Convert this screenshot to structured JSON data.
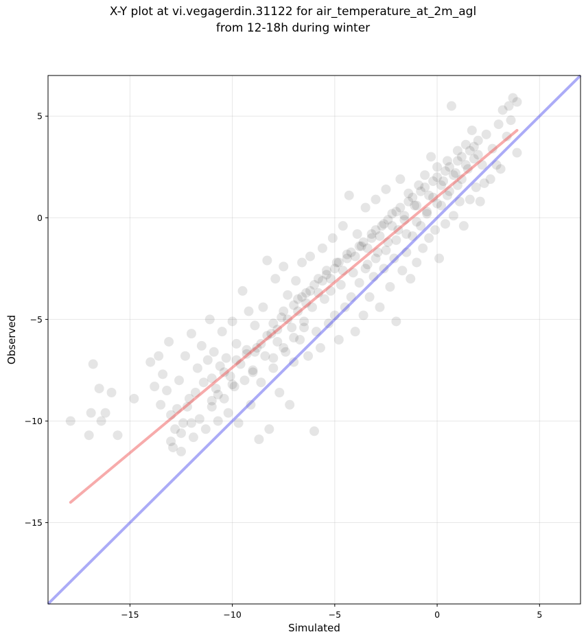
{
  "chart_data": {
    "type": "scatter",
    "title_line1": "X-Y plot at vi.vegagerdin.31122 for air_temperature_at_2m_agl",
    "title_line2": "from 12-18h during winter",
    "xlabel": "Simulated",
    "ylabel": "Observed",
    "xlim": [
      -19,
      7
    ],
    "ylim": [
      -19,
      7
    ],
    "x_ticks": [
      -15,
      -10,
      -5,
      0,
      5
    ],
    "y_ticks": [
      -15,
      -10,
      -5,
      0,
      5
    ],
    "x_tick_labels": [
      "−15",
      "−10",
      "−5",
      "0",
      "5"
    ],
    "y_tick_labels": [
      "−15",
      "−10",
      "−5",
      "0",
      "5"
    ],
    "grid": true,
    "point_color": "#000000",
    "point_alpha": 0.1,
    "fit_line": {
      "color": "#ee4444",
      "x": [
        -17.9,
        3.9
      ],
      "y": [
        -14.0,
        4.3
      ]
    },
    "identity_line": {
      "color": "#4444ee",
      "x": [
        -19,
        7
      ],
      "y": [
        -19,
        7
      ]
    },
    "points": [
      [
        -17.9,
        -10.0
      ],
      [
        -17.0,
        -10.7
      ],
      [
        -16.8,
        -7.2
      ],
      [
        -16.5,
        -8.4
      ],
      [
        -16.4,
        -10.0
      ],
      [
        -16.2,
        -9.6
      ],
      [
        -16.9,
        -9.6
      ],
      [
        -15.9,
        -8.6
      ],
      [
        -15.6,
        -10.7
      ],
      [
        -14.8,
        -8.9
      ],
      [
        -14.0,
        -7.1
      ],
      [
        -13.8,
        -8.3
      ],
      [
        -13.6,
        -6.8
      ],
      [
        -13.5,
        -9.2
      ],
      [
        -13.4,
        -7.7
      ],
      [
        -13.2,
        -8.5
      ],
      [
        -13.1,
        -6.1
      ],
      [
        -13.0,
        -9.7
      ],
      [
        -12.9,
        -11.3
      ],
      [
        -12.8,
        -10.4
      ],
      [
        -12.6,
        -8.0
      ],
      [
        -12.5,
        -11.5
      ],
      [
        -12.4,
        -10.1
      ],
      [
        -12.3,
        -6.8
      ],
      [
        -12.2,
        -9.3
      ],
      [
        -12.0,
        -5.7
      ],
      [
        -11.9,
        -10.8
      ],
      [
        -11.8,
        -8.6
      ],
      [
        -11.7,
        -7.4
      ],
      [
        -11.6,
        -9.9
      ],
      [
        -11.5,
        -6.3
      ],
      [
        -11.4,
        -8.1
      ],
      [
        -11.3,
        -10.4
      ],
      [
        -11.2,
        -7.0
      ],
      [
        -11.1,
        -5.0
      ],
      [
        -11.0,
        -9.0
      ],
      [
        -10.9,
        -6.6
      ],
      [
        -10.8,
        -8.4
      ],
      [
        -10.7,
        -10.0
      ],
      [
        -10.6,
        -7.3
      ],
      [
        -10.5,
        -5.6
      ],
      [
        -10.4,
        -8.9
      ],
      [
        -10.3,
        -6.9
      ],
      [
        -10.2,
        -9.6
      ],
      [
        -10.1,
        -7.8
      ],
      [
        -10.0,
        -5.1
      ],
      [
        -9.9,
        -8.3
      ],
      [
        -9.8,
        -6.2
      ],
      [
        -9.7,
        -10.1
      ],
      [
        -9.6,
        -7.2
      ],
      [
        -9.5,
        -3.6
      ],
      [
        -9.4,
        -8.0
      ],
      [
        -9.3,
        -6.7
      ],
      [
        -9.2,
        -4.6
      ],
      [
        -9.1,
        -9.2
      ],
      [
        -9.0,
        -7.5
      ],
      [
        -8.9,
        -5.3
      ],
      [
        -8.8,
        -6.4
      ],
      [
        -8.7,
        -10.9
      ],
      [
        -8.6,
        -8.1
      ],
      [
        -8.5,
        -4.4
      ],
      [
        -8.4,
        -6.8
      ],
      [
        -8.3,
        -2.1
      ],
      [
        -8.2,
        -10.4
      ],
      [
        -8.1,
        -5.7
      ],
      [
        -8.0,
        -7.4
      ],
      [
        -7.9,
        -3.0
      ],
      [
        -7.8,
        -6.1
      ],
      [
        -7.7,
        -8.6
      ],
      [
        -7.6,
        -4.9
      ],
      [
        -7.5,
        -2.4
      ],
      [
        -7.4,
        -6.6
      ],
      [
        -7.3,
        -3.8
      ],
      [
        -7.2,
        -9.2
      ],
      [
        -7.1,
        -5.4
      ],
      [
        -7.0,
        -7.1
      ],
      [
        -6.9,
        -3.1
      ],
      [
        -6.8,
        -4.6
      ],
      [
        -6.7,
        -6.0
      ],
      [
        -6.6,
        -2.2
      ],
      [
        -6.5,
        -5.1
      ],
      [
        -6.4,
        -3.7
      ],
      [
        -6.3,
        -6.8
      ],
      [
        -6.2,
        -1.9
      ],
      [
        -6.1,
        -4.4
      ],
      [
        -6.0,
        -10.5
      ],
      [
        -5.9,
        -5.6
      ],
      [
        -5.8,
        -3.0
      ],
      [
        -5.7,
        -6.4
      ],
      [
        -5.6,
        -1.5
      ],
      [
        -5.5,
        -4.0
      ],
      [
        -5.4,
        -2.6
      ],
      [
        -5.3,
        -5.2
      ],
      [
        -5.2,
        -3.6
      ],
      [
        -5.1,
        -1.0
      ],
      [
        -5.0,
        -4.8
      ],
      [
        -4.9,
        -2.2
      ],
      [
        -4.8,
        -6.0
      ],
      [
        -4.7,
        -3.3
      ],
      [
        -4.6,
        -0.4
      ],
      [
        -4.5,
        -4.4
      ],
      [
        -4.4,
        -1.8
      ],
      [
        -4.3,
        1.1
      ],
      [
        -4.2,
        -3.9
      ],
      [
        -4.1,
        -2.7
      ],
      [
        -4.0,
        -5.6
      ],
      [
        -3.9,
        -0.8
      ],
      [
        -3.8,
        -3.2
      ],
      [
        -3.7,
        -1.4
      ],
      [
        -3.6,
        -4.8
      ],
      [
        -3.5,
        0.5
      ],
      [
        -3.4,
        -2.3
      ],
      [
        -3.3,
        -3.9
      ],
      [
        -3.2,
        -1.0
      ],
      [
        -3.1,
        -2.9
      ],
      [
        -3.0,
        0.9
      ],
      [
        -2.9,
        -1.7
      ],
      [
        -2.8,
        -4.4
      ],
      [
        -2.7,
        -0.4
      ],
      [
        -2.6,
        -2.5
      ],
      [
        -2.5,
        1.4
      ],
      [
        -2.4,
        -1.2
      ],
      [
        -2.3,
        -3.4
      ],
      [
        -2.2,
        0.2
      ],
      [
        -2.1,
        -2.0
      ],
      [
        -2.0,
        -5.1
      ],
      [
        -1.9,
        -0.6
      ],
      [
        -1.8,
        1.9
      ],
      [
        -1.7,
        -2.6
      ],
      [
        -1.6,
        -0.1
      ],
      [
        -1.5,
        -1.7
      ],
      [
        -1.4,
        1.2
      ],
      [
        -1.3,
        -3.0
      ],
      [
        -1.2,
        -0.9
      ],
      [
        -1.1,
        0.6
      ],
      [
        -1.0,
        -2.2
      ],
      [
        -0.9,
        1.6
      ],
      [
        -0.8,
        -0.4
      ],
      [
        -0.7,
        -1.5
      ],
      [
        -0.6,
        2.1
      ],
      [
        -0.5,
        0.3
      ],
      [
        -0.4,
        -1.0
      ],
      [
        -0.3,
        3.0
      ],
      [
        -0.2,
        1.0
      ],
      [
        -0.1,
        -0.6
      ],
      [
        0.0,
        2.5
      ],
      [
        0.1,
        -2.0
      ],
      [
        0.2,
        0.6
      ],
      [
        0.3,
        1.8
      ],
      [
        0.4,
        -0.3
      ],
      [
        0.5,
        2.8
      ],
      [
        0.6,
        1.3
      ],
      [
        0.7,
        5.5
      ],
      [
        0.8,
        0.1
      ],
      [
        0.9,
        2.2
      ],
      [
        1.0,
        3.3
      ],
      [
        1.1,
        0.8
      ],
      [
        1.2,
        1.9
      ],
      [
        1.3,
        -0.4
      ],
      [
        1.4,
        3.6
      ],
      [
        1.5,
        2.4
      ],
      [
        1.6,
        0.9
      ],
      [
        1.7,
        4.3
      ],
      [
        1.8,
        2.9
      ],
      [
        1.9,
        1.5
      ],
      [
        2.0,
        3.8
      ],
      [
        2.1,
        0.8
      ],
      [
        2.2,
        2.6
      ],
      [
        2.3,
        1.7
      ],
      [
        2.4,
        4.1
      ],
      [
        2.6,
        1.9
      ],
      [
        2.7,
        3.4
      ],
      [
        2.9,
        2.6
      ],
      [
        3.0,
        4.6
      ],
      [
        3.1,
        2.4
      ],
      [
        3.2,
        5.3
      ],
      [
        3.4,
        4.0
      ],
      [
        3.5,
        5.5
      ],
      [
        3.6,
        4.8
      ],
      [
        3.7,
        5.9
      ],
      [
        3.9,
        5.7
      ],
      [
        3.9,
        3.2
      ],
      [
        -12.7,
        -9.4
      ],
      [
        -12.1,
        -8.9
      ],
      [
        -11.0,
        -7.9
      ],
      [
        -10.7,
        -8.7
      ],
      [
        -10.4,
        -7.6
      ],
      [
        -9.8,
        -7.0
      ],
      [
        -9.3,
        -6.5
      ],
      [
        -8.9,
        -6.6
      ],
      [
        -8.6,
        -6.2
      ],
      [
        -8.3,
        -5.8
      ],
      [
        -8.0,
        -5.2
      ],
      [
        -7.8,
        -5.5
      ],
      [
        -7.5,
        -4.6
      ],
      [
        -7.3,
        -5.0
      ],
      [
        -7.0,
        -4.3
      ],
      [
        -6.8,
        -4.0
      ],
      [
        -6.6,
        -3.9
      ],
      [
        -6.4,
        -4.2
      ],
      [
        -6.2,
        -3.6
      ],
      [
        -6.0,
        -3.3
      ],
      [
        -5.8,
        -3.7
      ],
      [
        -5.6,
        -3.1
      ],
      [
        -5.4,
        -2.8
      ],
      [
        -5.2,
        -3.0
      ],
      [
        -5.0,
        -2.5
      ],
      [
        -4.8,
        -2.2
      ],
      [
        -4.6,
        -2.6
      ],
      [
        -4.4,
        -2.0
      ],
      [
        -4.2,
        -1.7
      ],
      [
        -4.0,
        -1.9
      ],
      [
        -3.8,
        -1.4
      ],
      [
        -3.6,
        -1.2
      ],
      [
        -3.4,
        -1.5
      ],
      [
        -3.2,
        -0.8
      ],
      [
        -3.0,
        -0.6
      ],
      [
        -2.8,
        -0.9
      ],
      [
        -2.6,
        -0.3
      ],
      [
        -2.4,
        -0.1
      ],
      [
        -2.2,
        -0.4
      ],
      [
        -2.0,
        0.3
      ],
      [
        -1.8,
        0.5
      ],
      [
        -1.6,
        0.1
      ],
      [
        -1.4,
        0.8
      ],
      [
        -1.2,
        1.0
      ],
      [
        -1.0,
        0.6
      ],
      [
        -0.8,
        1.3
      ],
      [
        -0.6,
        1.5
      ],
      [
        -0.4,
        1.1
      ],
      [
        -0.2,
        1.8
      ],
      [
        0.0,
        2.0
      ],
      [
        0.2,
        1.6
      ],
      [
        0.4,
        2.3
      ],
      [
        0.6,
        2.5
      ],
      [
        0.8,
        2.1
      ],
      [
        1.0,
        2.8
      ],
      [
        1.2,
        3.0
      ],
      [
        1.4,
        2.6
      ],
      [
        1.6,
        3.3
      ],
      [
        1.8,
        3.5
      ],
      [
        2.0,
        3.1
      ],
      [
        -1.5,
        -0.8
      ],
      [
        -1.0,
        -0.2
      ],
      [
        -0.5,
        0.2
      ],
      [
        0.0,
        0.7
      ],
      [
        0.5,
        1.1
      ],
      [
        1.0,
        1.6
      ],
      [
        -2.5,
        -1.6
      ],
      [
        -2.0,
        -1.1
      ],
      [
        -3.5,
        -2.5
      ],
      [
        -3.0,
        -2.0
      ],
      [
        -6.5,
        -5.4
      ],
      [
        -7.0,
        -5.9
      ],
      [
        -7.5,
        -6.4
      ],
      [
        -8.0,
        -6.9
      ],
      [
        -9.0,
        -7.6
      ],
      [
        -10.0,
        -8.2
      ],
      [
        -11.0,
        -9.3
      ],
      [
        -12.0,
        -10.1
      ],
      [
        -12.5,
        -10.6
      ],
      [
        -13.0,
        -11.0
      ]
    ]
  }
}
